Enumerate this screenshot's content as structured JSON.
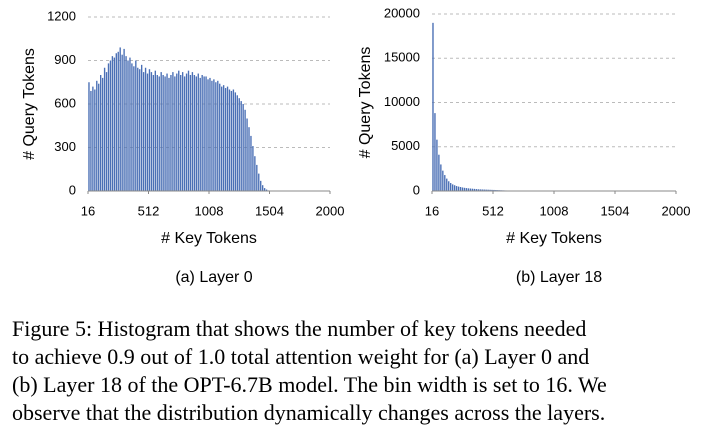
{
  "chart_data": [
    {
      "type": "histogram",
      "label": "(a) Layer 0",
      "x_label": "# Key Tokens",
      "y_label": "# Query Tokens",
      "color": "#4a6fb5",
      "grid": true,
      "xlim": [
        16,
        2000
      ],
      "xticks": [
        16,
        512,
        1008,
        1504,
        2000
      ],
      "ylim": [
        0,
        1200
      ],
      "yticks": [
        0,
        300,
        600,
        900,
        1200
      ],
      "bins": [
        16,
        32,
        48,
        64,
        80,
        96,
        112,
        128,
        144,
        160,
        176,
        192,
        208,
        224,
        240,
        256,
        272,
        288,
        304,
        320,
        336,
        352,
        368,
        384,
        400,
        416,
        432,
        448,
        464,
        480,
        496,
        512,
        528,
        544,
        560,
        576,
        592,
        608,
        624,
        640,
        656,
        672,
        688,
        704,
        720,
        736,
        752,
        768,
        784,
        800,
        816,
        832,
        848,
        864,
        880,
        896,
        912,
        928,
        944,
        960,
        976,
        992,
        1008,
        1024,
        1040,
        1056,
        1072,
        1088,
        1104,
        1120,
        1136,
        1152,
        1168,
        1184,
        1200,
        1216,
        1232,
        1248,
        1264,
        1280,
        1296,
        1312,
        1328,
        1344,
        1360,
        1376,
        1392,
        1408,
        1424,
        1440,
        1456,
        1472,
        1488,
        1504,
        1520,
        1536,
        1552,
        1568,
        1584,
        1600,
        1616,
        1632,
        1648,
        1664,
        1680,
        1696,
        1712,
        1728,
        1744,
        1760,
        1776,
        1792,
        1808,
        1824,
        1840,
        1856,
        1872,
        1888,
        1904,
        1920,
        1936,
        1952,
        1968,
        1984,
        2000
      ],
      "values": [
        750,
        690,
        720,
        700,
        760,
        740,
        800,
        780,
        850,
        820,
        880,
        900,
        930,
        920,
        950,
        960,
        990,
        940,
        980,
        930,
        900,
        920,
        880,
        860,
        900,
        850,
        840,
        870,
        820,
        850,
        810,
        840,
        820,
        800,
        830,
        800,
        790,
        820,
        800,
        790,
        810,
        780,
        800,
        820,
        790,
        810,
        830,
        800,
        820,
        790,
        810,
        830,
        800,
        820,
        800,
        790,
        810,
        780,
        800,
        790,
        790,
        770,
        780,
        760,
        770,
        750,
        760,
        740,
        720,
        730,
        710,
        720,
        700,
        690,
        700,
        680,
        660,
        640,
        620,
        600,
        560,
        500,
        440,
        380,
        310,
        240,
        180,
        120,
        70,
        40,
        20,
        10,
        4,
        1,
        0,
        0,
        0,
        0,
        0,
        0,
        0,
        0,
        0,
        0,
        0,
        0,
        0,
        0,
        0,
        0,
        0,
        0,
        0,
        0,
        0,
        0,
        0,
        0,
        0,
        0,
        0,
        0,
        0,
        0
      ]
    },
    {
      "type": "histogram",
      "label": "(b) Layer 18",
      "x_label": "# Key Tokens",
      "y_label": "# Query Tokens",
      "color": "#4a6fb5",
      "grid": true,
      "xlim": [
        16,
        2000
      ],
      "xticks": [
        16,
        512,
        1008,
        1504,
        2000
      ],
      "ylim": [
        0,
        20000
      ],
      "yticks": [
        0,
        5000,
        10000,
        15000,
        20000
      ],
      "bins": [
        16,
        32,
        48,
        64,
        80,
        96,
        112,
        128,
        144,
        160,
        176,
        192,
        208,
        224,
        240,
        256,
        272,
        288,
        304,
        320,
        336,
        352,
        368,
        384,
        400,
        416,
        432,
        448,
        464,
        480,
        496,
        512,
        528,
        544,
        560,
        576,
        592,
        608,
        624,
        640,
        656,
        672,
        688,
        704,
        720,
        736,
        752,
        768,
        784,
        800,
        816,
        832,
        848,
        864,
        880,
        896,
        912,
        928,
        944,
        960,
        976,
        992,
        1008,
        1024,
        1040,
        1056,
        1072,
        1088,
        1104,
        1120,
        1136,
        1152,
        1168,
        1184,
        1200,
        1216,
        1232,
        1248,
        1264,
        1280,
        1296,
        1312,
        1328,
        1344,
        1360,
        1376,
        1392,
        1408,
        1424,
        1440,
        1456,
        1472,
        1488,
        1504,
        1520,
        1536,
        1552,
        1568,
        1584,
        1600,
        1616,
        1632,
        1648,
        1664,
        1680,
        1696,
        1712,
        1728,
        1744,
        1760,
        1776,
        1792,
        1808,
        1824,
        1840,
        1856,
        1872,
        1888,
        1904,
        1920,
        1936,
        1952,
        1968,
        1984,
        2000
      ],
      "values": [
        19000,
        8800,
        5800,
        4100,
        3000,
        2300,
        1800,
        1400,
        1100,
        900,
        750,
        650,
        560,
        500,
        450,
        400,
        360,
        330,
        300,
        280,
        260,
        240,
        220,
        200,
        190,
        180,
        170,
        160,
        150,
        140,
        130,
        120,
        110,
        100,
        90,
        80,
        70,
        60,
        50,
        40,
        30,
        20,
        10,
        5,
        0,
        0,
        0,
        0,
        0,
        0,
        0,
        0,
        0,
        0,
        0,
        0,
        0,
        0,
        0,
        0,
        0,
        0,
        0,
        0,
        0,
        0,
        0,
        0,
        0,
        0,
        0,
        0,
        0,
        0,
        0,
        0,
        0,
        0,
        0,
        0,
        0,
        0,
        0,
        0,
        0,
        0,
        0,
        0,
        0,
        0,
        0,
        0,
        0,
        0,
        0,
        0,
        0,
        0,
        0,
        0,
        0,
        0,
        0,
        0,
        0,
        0,
        0,
        0,
        0,
        0,
        0,
        0,
        0,
        0,
        0,
        0,
        0,
        0,
        0,
        0,
        0,
        0,
        0,
        0
      ]
    }
  ],
  "caption": [
    "Figure 5: Histogram that shows the number of key tokens needed",
    "to achieve 0.9 out of 1.0 total attention weight for (a) Layer 0 and",
    "(b) Layer 18 of the OPT-6.7B model. The bin width is set to 16. We",
    "observe that the distribution dynamically changes across the layers."
  ]
}
